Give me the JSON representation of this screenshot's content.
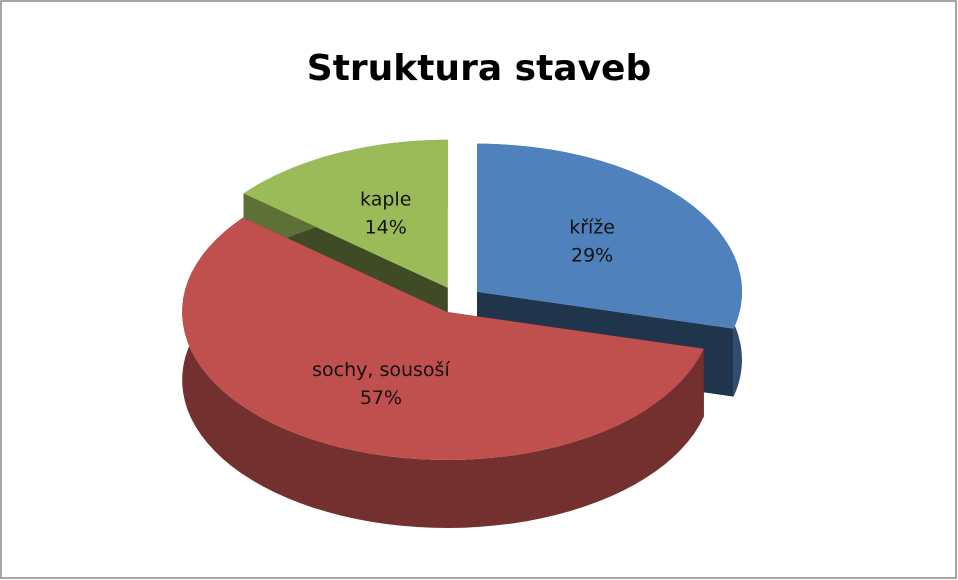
{
  "chart_data": {
    "type": "pie",
    "title": "Struktura staveb",
    "categories": [
      "kříže",
      "sochy, sousoší",
      "kaple"
    ],
    "values": [
      29,
      57,
      14
    ],
    "value_labels": [
      "29%",
      "57%",
      "14%"
    ],
    "colors": [
      "#4f81bd",
      "#c0504d",
      "#9bbb59"
    ]
  }
}
